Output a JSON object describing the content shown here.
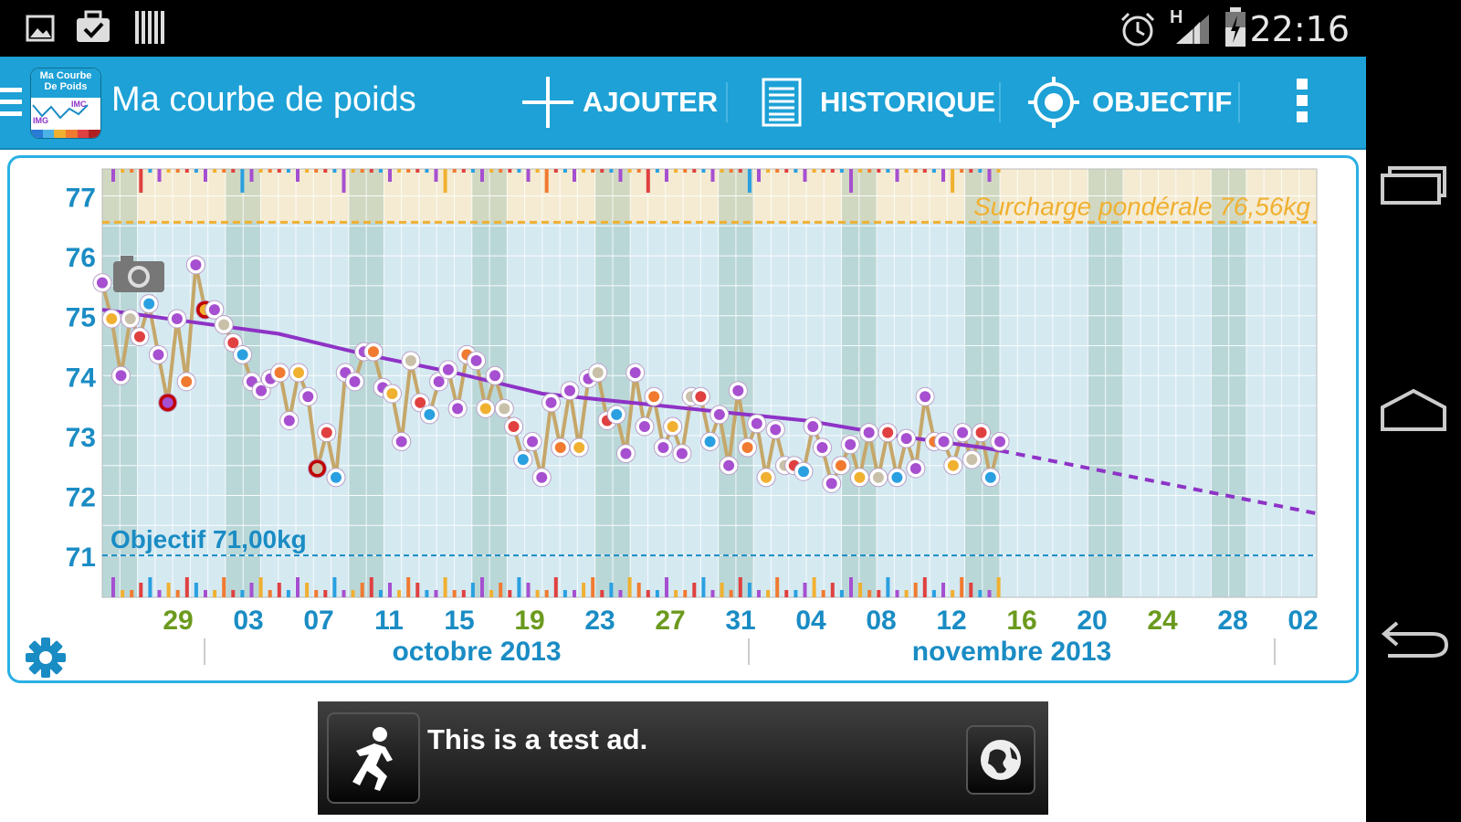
{
  "status_bar": {
    "time": "22:16",
    "network": "H"
  },
  "action_bar": {
    "title": "Ma courbe de poids",
    "logo_text_1": "Ma Courbe",
    "logo_text_2": "De Poids",
    "logo_imc": "IMC",
    "logo_img": "IMG",
    "actions": [
      {
        "label": "AJOUTER",
        "icon": "plus-icon"
      },
      {
        "label": "HISTORIQUE",
        "icon": "list-icon"
      },
      {
        "label": "OBJECTIF",
        "icon": "target-icon"
      }
    ]
  },
  "chart_data": {
    "type": "line",
    "y_ticks": [
      "77",
      "76",
      "75",
      "74",
      "73",
      "72",
      "71"
    ],
    "ylim": [
      70.3,
      77.45
    ],
    "x_tick_labels": [
      "29",
      "03",
      "07",
      "11",
      "15",
      "19",
      "23",
      "27",
      "31",
      "04",
      "08",
      "12",
      "16",
      "20",
      "24",
      "28",
      "02"
    ],
    "x_tick_colors": [
      "#6b9a1e",
      "#1a8cc4",
      "#1a8cc4",
      "#1a8cc4",
      "#1a8cc4",
      "#6b9a1e",
      "#1a8cc4",
      "#6b9a1e",
      "#1a8cc4",
      "#1a8cc4",
      "#1a8cc4",
      "#1a8cc4",
      "#6b9a1e",
      "#1a8cc4",
      "#6b9a1e",
      "#1a8cc4",
      "#1a8cc4"
    ],
    "months": [
      "octobre 2013",
      "novembre 2013"
    ],
    "overweight_label": "Surcharge pondérale 76,56kg",
    "overweight_value": 76.56,
    "goal_label": "Objectif 71,00kg",
    "goal_value": 71.0,
    "day_range": [
      0,
      69
    ],
    "data_end_day": 51,
    "weights": [
      75.55,
      74.95,
      74.0,
      74.95,
      74.65,
      75.2,
      74.35,
      73.55,
      74.95,
      73.9,
      75.85,
      75.1,
      75.1,
      74.85,
      74.55,
      74.35,
      73.9,
      73.75,
      73.95,
      74.05,
      73.25,
      74.05,
      73.65,
      72.45,
      73.05,
      72.3,
      74.05,
      73.9,
      74.4,
      74.4,
      73.8,
      73.7,
      72.9,
      74.25,
      73.55,
      73.35,
      73.9,
      74.1,
      73.45,
      74.35,
      74.25,
      73.45,
      74.0,
      73.45,
      73.15,
      72.6,
      72.9,
      72.3,
      73.55,
      72.8,
      73.75,
      72.8,
      73.95,
      74.05,
      73.25,
      73.35,
      72.7,
      74.05,
      73.15,
      73.65,
      72.8,
      73.15,
      72.7,
      73.65,
      73.65,
      72.9,
      73.35,
      72.5,
      73.75,
      72.8,
      73.2,
      72.3,
      73.1,
      72.5,
      72.5,
      72.4,
      73.15,
      72.8,
      72.2,
      72.5,
      72.85,
      72.3,
      73.05,
      72.3,
      73.05,
      72.3,
      72.95,
      72.45,
      73.65,
      72.9,
      72.9,
      72.5,
      73.05,
      72.6,
      73.05,
      72.3,
      72.9
    ],
    "trend": [
      [
        0,
        75.1
      ],
      [
        5,
        74.9
      ],
      [
        10,
        74.7
      ],
      [
        15,
        74.35
      ],
      [
        20,
        74.05
      ],
      [
        25,
        73.7
      ],
      [
        30,
        73.55
      ],
      [
        35,
        73.4
      ],
      [
        40,
        73.25
      ],
      [
        45,
        73.0
      ],
      [
        50,
        72.8
      ],
      [
        51,
        72.75
      ]
    ],
    "projection": [
      [
        51,
        72.75
      ],
      [
        69,
        71.7
      ]
    ],
    "colors": {
      "line": "#c5a76a",
      "trend": "#8e33c6",
      "goal": "#1a8cc4",
      "overweight": "#f0b030"
    }
  },
  "ad": {
    "text": "This is a test ad."
  }
}
